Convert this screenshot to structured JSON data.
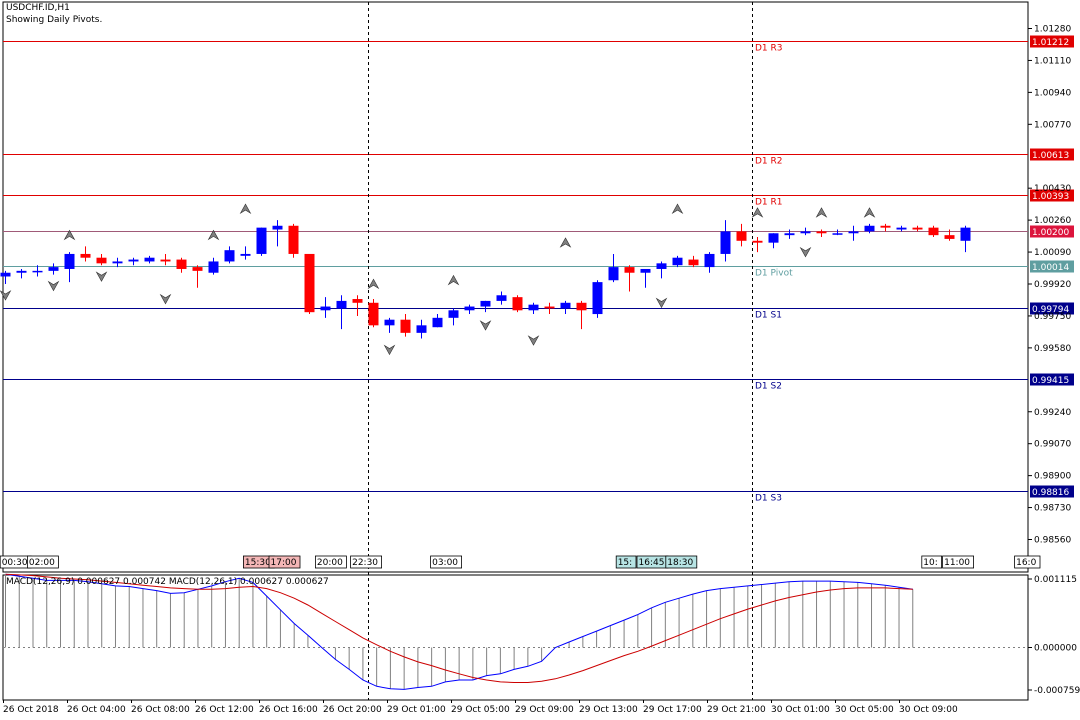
{
  "symbol": "USDCHF.ID,H1",
  "subtitle": "Showing Daily Pivots.",
  "colors": {
    "bull": "#0000ff",
    "bear": "#ff0000",
    "resistance": "#e00000",
    "support": "#00008b",
    "pivot": "#5f9ea0",
    "macd_main": "#0000ff",
    "macd_signal": "#cc0000",
    "histogram": "#808080",
    "current_price": "#dc143c"
  },
  "chart_data": [
    {
      "type": "candlestick",
      "title": "USDCHF.ID,H1",
      "subtitle": "Showing Daily Pivots.",
      "ylim": [
        0.9849,
        1.0136
      ],
      "grid": false,
      "y_ticks": [
        "1.01280",
        "1.01110",
        "1.00940",
        "1.00770",
        "1.00430",
        "1.00260",
        "1.00090",
        "0.99920",
        "0.99750",
        "0.99580",
        "0.99240",
        "0.99070",
        "0.98900",
        "0.98730",
        "0.98560"
      ],
      "pivot_levels": [
        {
          "label": "D1 R3",
          "value": 1.01212,
          "value_label": "1.01212",
          "kind": "resistance"
        },
        {
          "label": "D1 R2",
          "value": 1.00613,
          "value_label": "1.00613",
          "kind": "resistance"
        },
        {
          "label": "D1 R1",
          "value": 1.00393,
          "value_label": "1.00393",
          "kind": "resistance"
        },
        {
          "label": "D1 Pivot",
          "value": 1.00014,
          "value_label": "1.00014",
          "kind": "pivot"
        },
        {
          "label": "D1 S1",
          "value": 0.99794,
          "value_label": "0.99794",
          "kind": "support"
        },
        {
          "label": "D1 S2",
          "value": 0.99415,
          "value_label": "0.99415",
          "kind": "support"
        },
        {
          "label": "D1 S3",
          "value": 0.98816,
          "value_label": "0.98816",
          "kind": "support"
        }
      ],
      "current_price": {
        "value": 1.002,
        "label": "1.00200"
      },
      "session_labels": [
        {
          "label": "00:30",
          "slot": -0.3,
          "color": "#ffffff"
        },
        {
          "label": "02:00",
          "slot": 1.4,
          "color": "#ffffff"
        },
        {
          "label": "15:30",
          "slot": 14.9,
          "color": "#f4b6b6"
        },
        {
          "label": "17:00",
          "slot": 16.5,
          "color": "#f4b6b6"
        },
        {
          "label": "20:00",
          "slot": 19.4,
          "color": "#ffffff"
        },
        {
          "label": "22:30",
          "slot": 21.6,
          "color": "#ffffff"
        },
        {
          "label": "03:00",
          "slot": 26.6,
          "color": "#ffffff"
        },
        {
          "label": "15:",
          "slot": 38.2,
          "color": "#b7e4e4"
        },
        {
          "label": "16:45",
          "slot": 39.5,
          "color": "#b7e4e4"
        },
        {
          "label": "18:30",
          "slot": 41.3,
          "color": "#b7e4e4"
        },
        {
          "label": "10:",
          "slot": 57.3,
          "color": "#ffffff"
        },
        {
          "label": "11:00",
          "slot": 58.6,
          "color": "#ffffff"
        },
        {
          "label": "16:0",
          "slot": 63.1,
          "color": "#ffffff"
        }
      ],
      "day_separators": [
        22.7,
        46.7
      ],
      "candles": [
        {
          "o": 0.9996,
          "h": 0.9999,
          "l": 0.9992,
          "c": 0.9998
        },
        {
          "o": 0.9998,
          "h": 1.0,
          "l": 0.9995,
          "c": 0.9999
        },
        {
          "o": 0.9999,
          "h": 1.0002,
          "l": 0.9996,
          "c": 0.9999
        },
        {
          "o": 0.9999,
          "h": 1.0003,
          "l": 0.9997,
          "c": 1.0001
        },
        {
          "o": 1.0,
          "h": 1.0009,
          "l": 0.9993,
          "c": 1.0008
        },
        {
          "o": 1.0008,
          "h": 1.0012,
          "l": 1.0004,
          "c": 1.0006
        },
        {
          "o": 1.0006,
          "h": 1.0008,
          "l": 1.0002,
          "c": 1.0003
        },
        {
          "o": 1.0003,
          "h": 1.0006,
          "l": 1.0001,
          "c": 1.0004
        },
        {
          "o": 1.0004,
          "h": 1.0006,
          "l": 1.0002,
          "c": 1.0005
        },
        {
          "o": 1.0004,
          "h": 1.0007,
          "l": 1.0003,
          "c": 1.0006
        },
        {
          "o": 1.0005,
          "h": 1.0008,
          "l": 1.0002,
          "c": 1.0004
        },
        {
          "o": 1.0005,
          "h": 1.0006,
          "l": 0.9998,
          "c": 1.0
        },
        {
          "o": 1.0001,
          "h": 1.0002,
          "l": 0.999,
          "c": 0.9999
        },
        {
          "o": 0.9998,
          "h": 1.0006,
          "l": 0.9997,
          "c": 1.0004
        },
        {
          "o": 1.0004,
          "h": 1.0012,
          "l": 1.0003,
          "c": 1.001
        },
        {
          "o": 1.0007,
          "h": 1.0012,
          "l": 1.0005,
          "c": 1.0008
        },
        {
          "o": 1.0008,
          "h": 1.0022,
          "l": 1.0007,
          "c": 1.0022
        },
        {
          "o": 1.0021,
          "h": 1.0026,
          "l": 1.0012,
          "c": 1.0023
        },
        {
          "o": 1.0023,
          "h": 1.0024,
          "l": 1.0006,
          "c": 1.0008
        },
        {
          "o": 1.0008,
          "h": 1.0008,
          "l": 0.9976,
          "c": 0.9977
        },
        {
          "o": 0.9978,
          "h": 0.9985,
          "l": 0.9974,
          "c": 0.998
        },
        {
          "o": 0.9979,
          "h": 0.9986,
          "l": 0.9968,
          "c": 0.9983
        },
        {
          "o": 0.9984,
          "h": 0.9986,
          "l": 0.9975,
          "c": 0.9982
        },
        {
          "o": 0.9982,
          "h": 0.9984,
          "l": 0.9969,
          "c": 0.997
        },
        {
          "o": 0.997,
          "h": 0.9974,
          "l": 0.9966,
          "c": 0.9973
        },
        {
          "o": 0.9973,
          "h": 0.9976,
          "l": 0.9964,
          "c": 0.9966
        },
        {
          "o": 0.9966,
          "h": 0.9973,
          "l": 0.9963,
          "c": 0.997
        },
        {
          "o": 0.9969,
          "h": 0.9976,
          "l": 0.9969,
          "c": 0.9974
        },
        {
          "o": 0.9974,
          "h": 0.9979,
          "l": 0.997,
          "c": 0.9978
        },
        {
          "o": 0.9978,
          "h": 0.9981,
          "l": 0.9976,
          "c": 0.998
        },
        {
          "o": 0.998,
          "h": 0.9983,
          "l": 0.9977,
          "c": 0.9983
        },
        {
          "o": 0.9983,
          "h": 0.9988,
          "l": 0.9981,
          "c": 0.9986
        },
        {
          "o": 0.9985,
          "h": 0.9986,
          "l": 0.9977,
          "c": 0.9978
        },
        {
          "o": 0.9978,
          "h": 0.9982,
          "l": 0.9976,
          "c": 0.9981
        },
        {
          "o": 0.998,
          "h": 0.9982,
          "l": 0.9976,
          "c": 0.9979
        },
        {
          "o": 0.9979,
          "h": 0.9983,
          "l": 0.9976,
          "c": 0.9982
        },
        {
          "o": 0.9982,
          "h": 0.9983,
          "l": 0.9968,
          "c": 0.9978
        },
        {
          "o": 0.9976,
          "h": 0.9994,
          "l": 0.9974,
          "c": 0.9993
        },
        {
          "o": 0.9994,
          "h": 1.0008,
          "l": 0.9993,
          "c": 1.0001
        },
        {
          "o": 1.0001,
          "h": 1.0002,
          "l": 0.9988,
          "c": 0.9998
        },
        {
          "o": 0.9998,
          "h": 1.0,
          "l": 0.999,
          "c": 1.0
        },
        {
          "o": 1.0,
          "h": 1.0004,
          "l": 0.9995,
          "c": 1.0003
        },
        {
          "o": 1.0002,
          "h": 1.0007,
          "l": 1.0001,
          "c": 1.0006
        },
        {
          "o": 1.0005,
          "h": 1.0007,
          "l": 1.0001,
          "c": 1.0002
        },
        {
          "o": 1.0001,
          "h": 1.0009,
          "l": 0.9998,
          "c": 1.0008
        },
        {
          "o": 1.0008,
          "h": 1.0026,
          "l": 1.0004,
          "c": 1.002
        },
        {
          "o": 1.002,
          "h": 1.0024,
          "l": 1.0012,
          "c": 1.0015
        },
        {
          "o": 1.0015,
          "h": 1.0017,
          "l": 1.0009,
          "c": 1.0014
        },
        {
          "o": 1.0014,
          "h": 1.0019,
          "l": 1.0011,
          "c": 1.0019
        },
        {
          "o": 1.0018,
          "h": 1.0021,
          "l": 1.0016,
          "c": 1.0019
        },
        {
          "o": 1.0019,
          "h": 1.0022,
          "l": 1.0018,
          "c": 1.002
        },
        {
          "o": 1.002,
          "h": 1.0021,
          "l": 1.0017,
          "c": 1.0019
        },
        {
          "o": 1.0019,
          "h": 1.0021,
          "l": 1.0018,
          "c": 1.0019
        },
        {
          "o": 1.0019,
          "h": 1.0023,
          "l": 1.0015,
          "c": 1.002
        },
        {
          "o": 1.002,
          "h": 1.0024,
          "l": 1.0019,
          "c": 1.0023
        },
        {
          "o": 1.0023,
          "h": 1.0024,
          "l": 1.002,
          "c": 1.0022
        },
        {
          "o": 1.0021,
          "h": 1.0023,
          "l": 1.002,
          "c": 1.0022
        },
        {
          "o": 1.0022,
          "h": 1.0023,
          "l": 1.002,
          "c": 1.0021
        },
        {
          "o": 1.0022,
          "h": 1.0023,
          "l": 1.0017,
          "c": 1.0018
        },
        {
          "o": 1.0018,
          "h": 1.0021,
          "l": 1.0015,
          "c": 1.0016
        },
        {
          "o": 1.0015,
          "h": 1.0023,
          "l": 1.0009,
          "c": 1.0022
        }
      ],
      "fractals": [
        {
          "i": 0,
          "dir": "down",
          "price": 0.9992
        },
        {
          "i": 3,
          "dir": "down",
          "price": 0.9997
        },
        {
          "i": 4,
          "dir": "up",
          "price": 1.0012
        },
        {
          "i": 6,
          "dir": "down",
          "price": 1.0002
        },
        {
          "i": 10,
          "dir": "down",
          "price": 0.999
        },
        {
          "i": 13,
          "dir": "up",
          "price": 1.0012
        },
        {
          "i": 15,
          "dir": "up",
          "price": 1.0026
        },
        {
          "i": 23,
          "dir": "up",
          "price": 0.9986
        },
        {
          "i": 24,
          "dir": "down",
          "price": 0.9963
        },
        {
          "i": 28,
          "dir": "up",
          "price": 0.9988
        },
        {
          "i": 30,
          "dir": "down",
          "price": 0.9976
        },
        {
          "i": 33,
          "dir": "down",
          "price": 0.9968
        },
        {
          "i": 35,
          "dir": "up",
          "price": 1.0008
        },
        {
          "i": 41,
          "dir": "down",
          "price": 0.9988
        },
        {
          "i": 42,
          "dir": "up",
          "price": 1.0026
        },
        {
          "i": 47,
          "dir": "up",
          "price": 1.0024
        },
        {
          "i": 50,
          "dir": "down",
          "price": 1.0015
        },
        {
          "i": 51,
          "dir": "up",
          "price": 1.0024
        },
        {
          "i": 54,
          "dir": "up",
          "price": 1.0024
        }
      ]
    },
    {
      "type": "histogram+line",
      "title": "MACD(12,26,9) 0.000627 0.000742 MACD(12,26,1) 0.000627 0.000627",
      "ylim": [
        -0.000759,
        0.001115
      ],
      "y_ticks": [
        "0.001115",
        "0.000000",
        "-0.000759"
      ],
      "x_labels": [
        {
          "label": "26 Oct 2018",
          "slot": 0
        },
        {
          "label": "26 Oct 04:00",
          "slot": 4
        },
        {
          "label": "26 Oct 08:00",
          "slot": 8
        },
        {
          "label": "26 Oct 12:00",
          "slot": 12
        },
        {
          "label": "26 Oct 16:00",
          "slot": 16
        },
        {
          "label": "26 Oct 20:00",
          "slot": 20
        },
        {
          "label": "29 Oct 01:00",
          "slot": 24
        },
        {
          "label": "29 Oct 05:00",
          "slot": 28
        },
        {
          "label": "29 Oct 09:00",
          "slot": 32
        },
        {
          "label": "29 Oct 13:00",
          "slot": 36
        },
        {
          "label": "29 Oct 17:00",
          "slot": 40
        },
        {
          "label": "29 Oct 21:00",
          "slot": 44
        },
        {
          "label": "30 Oct 01:00",
          "slot": 48
        },
        {
          "label": "30 Oct 05:00",
          "slot": 52
        },
        {
          "label": "30 Oct 09:00",
          "slot": 56
        }
      ],
      "histogram": [
        1.07,
        1.04,
        1.01,
        0.98,
        0.98,
        0.98,
        0.96,
        0.93,
        0.9,
        0.89,
        0.86,
        0.83,
        0.79,
        0.8,
        0.85,
        0.9,
        0.96,
        1.01,
        0.95,
        0.75,
        0.55,
        0.35,
        0.18,
        0.0,
        -0.19,
        -0.35,
        -0.52,
        -0.62,
        -0.66,
        -0.67,
        -0.64,
        -0.62,
        -0.55,
        -0.52,
        -0.52,
        -0.45,
        -0.42,
        -0.35,
        -0.3,
        -0.22,
        0.0,
        0.08,
        0.16,
        0.24,
        0.32,
        0.4,
        0.48,
        0.58,
        0.66,
        0.72,
        0.78,
        0.83,
        0.86,
        0.88,
        0.9,
        0.92,
        0.94,
        0.96,
        0.97,
        0.97,
        0.97,
        0.96,
        0.95,
        0.93,
        0.91,
        0.88,
        0.85,
        0.81,
        0.75,
        0.7,
        0.66,
        0.63
      ],
      "signal": [
        1.07,
        1.06,
        1.05,
        1.03,
        1.01,
        1.0,
        0.99,
        0.97,
        0.95,
        0.93,
        0.91,
        0.89,
        0.87,
        0.86,
        0.85,
        0.85,
        0.86,
        0.88,
        0.89,
        0.86,
        0.8,
        0.72,
        0.62,
        0.5,
        0.38,
        0.26,
        0.14,
        0.04,
        -0.06,
        -0.15,
        -0.23,
        -0.29,
        -0.36,
        -0.42,
        -0.48,
        -0.52,
        -0.55,
        -0.56,
        -0.56,
        -0.54,
        -0.5,
        -0.44,
        -0.37,
        -0.29,
        -0.21,
        -0.13,
        -0.06,
        0.02,
        0.1,
        0.18,
        0.26,
        0.34,
        0.42,
        0.49,
        0.56,
        0.62,
        0.68,
        0.73,
        0.77,
        0.81,
        0.84,
        0.86,
        0.87,
        0.87,
        0.87,
        0.86,
        0.85,
        0.82,
        0.79,
        0.76,
        0.74,
        0.72
      ]
    }
  ]
}
